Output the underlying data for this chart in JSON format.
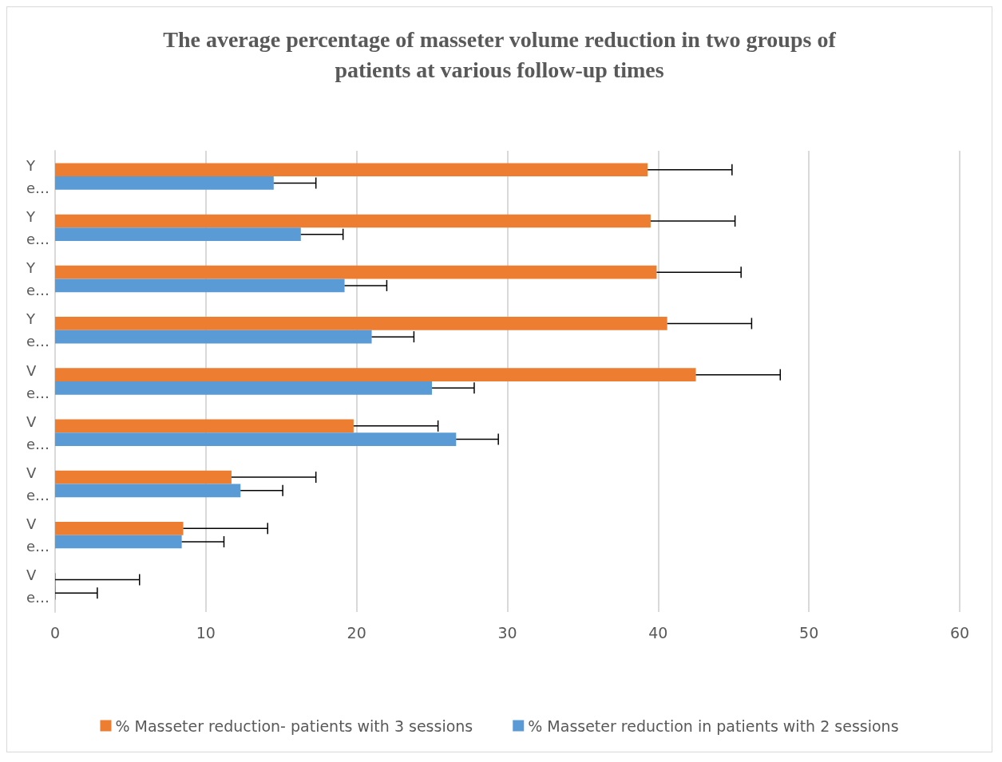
{
  "chart_data": {
    "type": "bar",
    "orientation": "horizontal",
    "title": "The average percentage of masseter volume reduction in two groups of\npatients at various follow-up times",
    "categories": [
      "Y\ne…",
      "Y\ne…",
      "Y\ne…",
      "Y\ne…",
      "V\ne…",
      "V\ne…",
      "V\ne…",
      "V\ne…",
      "V\ne…"
    ],
    "series": [
      {
        "name": "% Masseter reduction- patients with 3 sessions",
        "color": "#ed7d31",
        "values": [
          39.3,
          39.5,
          39.9,
          40.6,
          42.5,
          19.8,
          11.7,
          8.5,
          0
        ],
        "errors": [
          5.6,
          5.6,
          5.6,
          5.6,
          5.6,
          5.6,
          5.6,
          5.6,
          5.6
        ]
      },
      {
        "name": "% Masseter reduction in patients with 2 sessions",
        "color": "#5b9bd5",
        "values": [
          14.5,
          16.3,
          19.2,
          21.0,
          25.0,
          26.6,
          12.3,
          8.4,
          0
        ],
        "errors": [
          2.8,
          2.8,
          2.8,
          2.8,
          2.8,
          2.8,
          2.8,
          2.8,
          2.8
        ]
      }
    ],
    "xlim": [
      0,
      60
    ],
    "xticks": [
      0,
      10,
      20,
      30,
      40,
      50,
      60
    ],
    "grid": "x",
    "legend": "bottom"
  }
}
